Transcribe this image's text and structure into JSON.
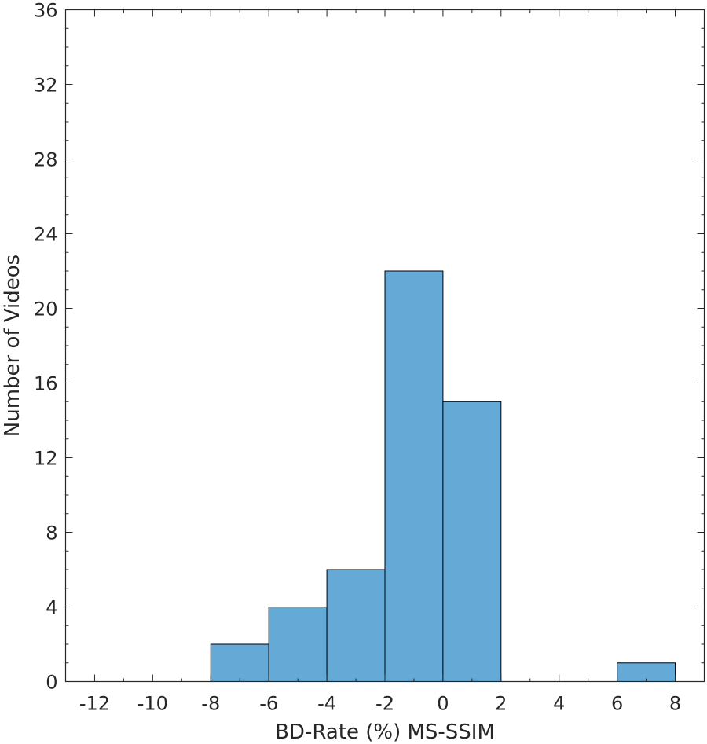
{
  "chart_data": {
    "type": "bar",
    "bins": [
      {
        "start": -8,
        "end": -6,
        "count": 2
      },
      {
        "start": -6,
        "end": -4,
        "count": 4
      },
      {
        "start": -4,
        "end": -2,
        "count": 6
      },
      {
        "start": -2,
        "end": 0,
        "count": 22
      },
      {
        "start": 0,
        "end": 2,
        "count": 15
      },
      {
        "start": 6,
        "end": 8,
        "count": 1
      }
    ],
    "xlabel": "BD-Rate (%) MS-SSIM",
    "ylabel": "Number of Videos",
    "xlim": [
      -13,
      9
    ],
    "ylim": [
      0,
      36
    ],
    "xticks": [
      "-12",
      "-10",
      "-8",
      "-6",
      "-4",
      "-2",
      "0",
      "2",
      "4",
      "6",
      "8"
    ],
    "yticks": [
      "0",
      "4",
      "8",
      "12",
      "16",
      "20",
      "24",
      "28",
      "32",
      "36"
    ],
    "bar_color": "#65a9d7",
    "edge_color": "#000000",
    "grid": false,
    "minor_ticks": true
  }
}
